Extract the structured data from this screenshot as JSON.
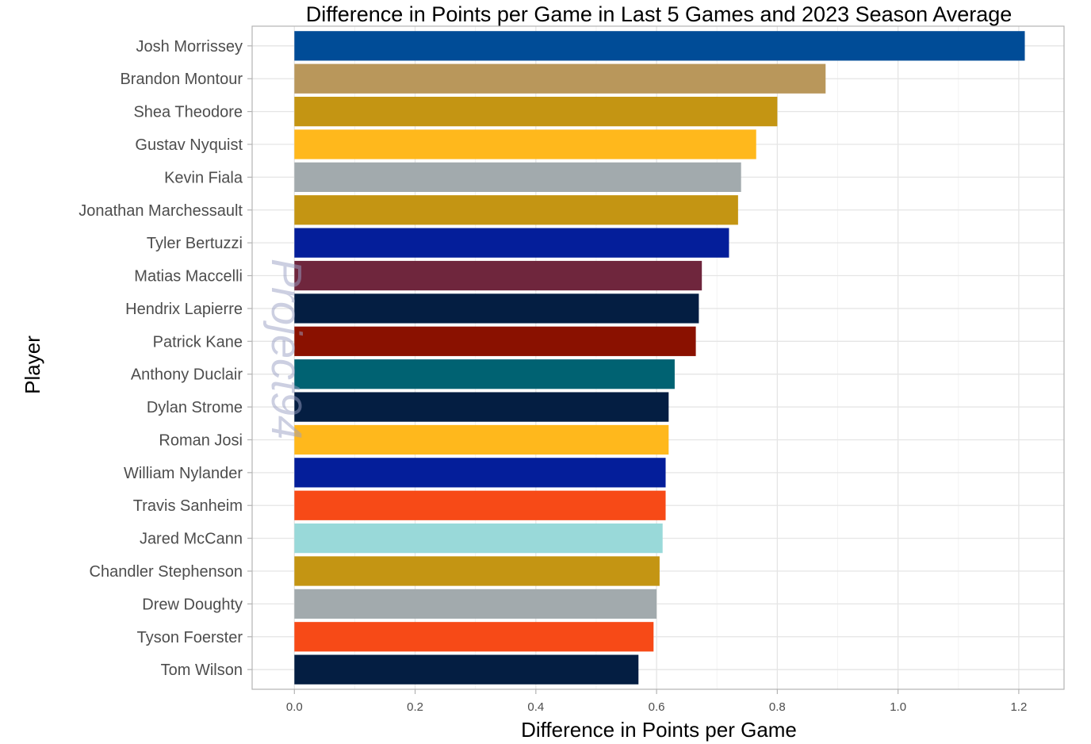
{
  "chart_data": {
    "type": "bar",
    "orientation": "horizontal",
    "title": "Difference in Points per Game in Last 5 Games and 2023 Season Average",
    "xlabel": "Difference in Points per Game",
    "ylabel": "Player",
    "xlim": [
      -0.07,
      1.275
    ],
    "xticks": [
      0.0,
      0.2,
      0.4,
      0.6,
      0.8,
      1.0,
      1.2
    ],
    "xtick_labels": [
      "0.0",
      "0.2",
      "0.4",
      "0.6",
      "0.8",
      "1.0",
      "1.2"
    ],
    "grid": true,
    "legend": "none",
    "watermark": "Project94",
    "categories": [
      "Josh Morrissey",
      "Brandon Montour",
      "Shea Theodore",
      "Gustav Nyquist",
      "Kevin Fiala",
      "Jonathan Marchessault",
      "Tyler Bertuzzi",
      "Matias Maccelli",
      "Hendrix Lapierre",
      "Patrick Kane",
      "Anthony Duclair",
      "Dylan Strome",
      "Roman Josi",
      "William Nylander",
      "Travis Sanheim",
      "Jared McCann",
      "Chandler Stephenson",
      "Drew Doughty",
      "Tyson Foerster",
      "Tom Wilson"
    ],
    "values": [
      1.21,
      0.88,
      0.8,
      0.765,
      0.74,
      0.735,
      0.72,
      0.675,
      0.67,
      0.665,
      0.63,
      0.62,
      0.62,
      0.615,
      0.615,
      0.61,
      0.605,
      0.6,
      0.595,
      0.57
    ],
    "colors": [
      "#004C97",
      "#B9975B",
      "#C49513",
      "#FFB81C",
      "#A2AAAD",
      "#C49513",
      "#041E9A",
      "#6F263D",
      "#041E42",
      "#8A1100",
      "#006272",
      "#041E42",
      "#FFB81C",
      "#041E9A",
      "#F74A17",
      "#99D9D9",
      "#C49513",
      "#A2AAAD",
      "#F74A17",
      "#041E42"
    ]
  }
}
